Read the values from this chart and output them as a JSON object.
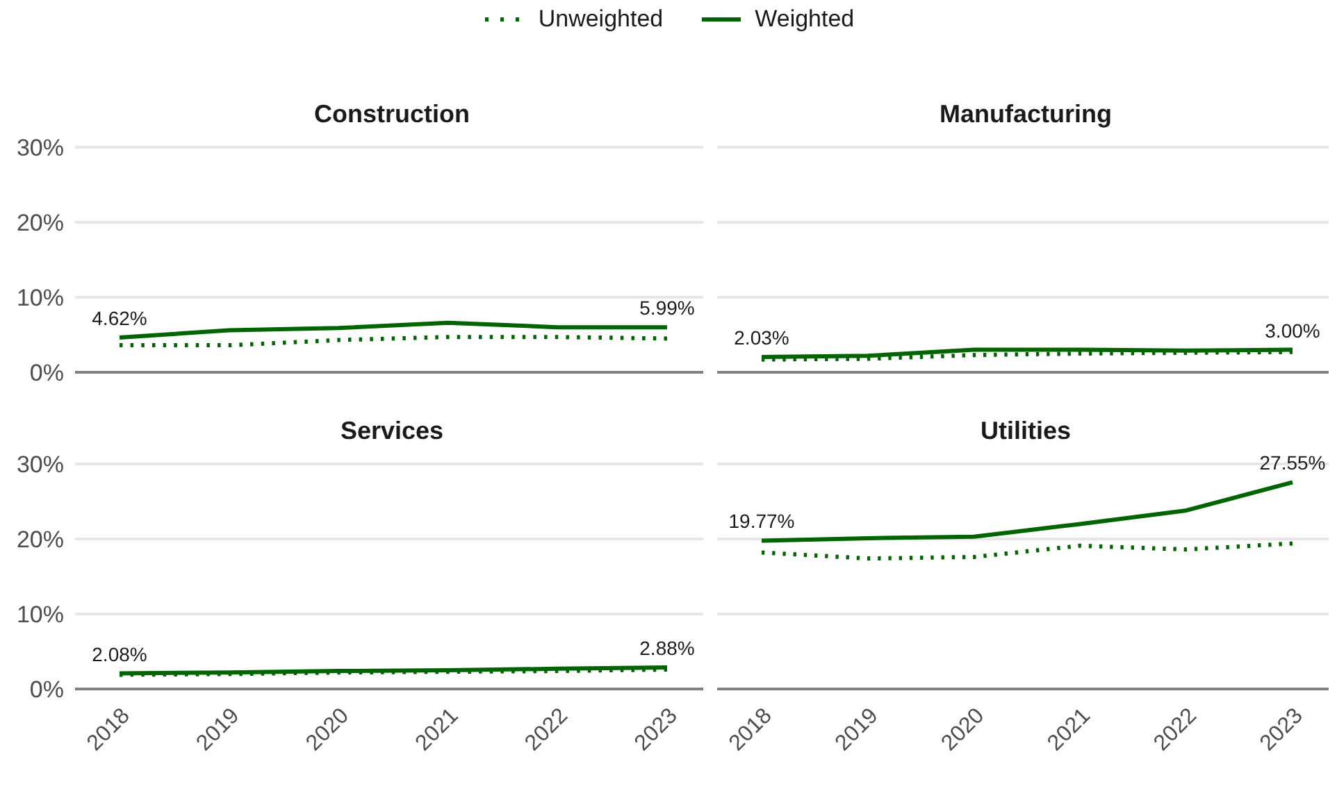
{
  "chart_data": [
    {
      "type": "line",
      "title": "Construction",
      "categories": [
        "2018",
        "2019",
        "2020",
        "2021",
        "2022",
        "2023"
      ],
      "ylim": [
        0,
        30
      ],
      "yticks": [
        {
          "value": 0,
          "label": "0%"
        },
        {
          "value": 10,
          "label": "10%"
        },
        {
          "value": 20,
          "label": "20%"
        },
        {
          "value": 30,
          "label": "30%"
        }
      ],
      "grid": "y",
      "tick_labels": "y",
      "legend": "top",
      "series": [
        {
          "name": "Unweighted",
          "color": "#006400",
          "line_style": "dotted",
          "values": [
            3.6,
            3.6,
            4.3,
            4.7,
            4.7,
            4.5
          ]
        },
        {
          "name": "Weighted",
          "color": "#006400",
          "line_style": "solid",
          "values": [
            4.62,
            5.6,
            5.9,
            6.6,
            6.0,
            5.99
          ],
          "value_labels": [
            "4.62%",
            null,
            null,
            null,
            null,
            "5.99%"
          ]
        }
      ]
    },
    {
      "type": "line",
      "title": "Manufacturing",
      "categories": [
        "2018",
        "2019",
        "2020",
        "2021",
        "2022",
        "2023"
      ],
      "ylim": [
        0,
        30
      ],
      "yticks": [
        {
          "value": 0,
          "label": null
        },
        {
          "value": 10,
          "label": null
        },
        {
          "value": 20,
          "label": null
        },
        {
          "value": 30,
          "label": null
        }
      ],
      "grid": "y",
      "tick_labels": false,
      "series": [
        {
          "color": "#006400",
          "line_style": "dotted",
          "values": [
            1.7,
            1.8,
            2.3,
            2.5,
            2.6,
            2.7
          ]
        },
        {
          "color": "#006400",
          "line_style": "solid",
          "values": [
            2.03,
            2.2,
            3.0,
            3.0,
            2.9,
            3.0
          ],
          "value_labels": [
            "2.03%",
            null,
            null,
            null,
            null,
            "3.00%"
          ]
        }
      ]
    },
    {
      "type": "line",
      "title": "Services",
      "categories": [
        "2018",
        "2019",
        "2020",
        "2021",
        "2022",
        "2023"
      ],
      "ylim": [
        0,
        30
      ],
      "yticks": [
        {
          "value": 0,
          "label": "0%"
        },
        {
          "value": 10,
          "label": "10%"
        },
        {
          "value": 20,
          "label": "20%"
        },
        {
          "value": 30,
          "label": "30%"
        }
      ],
      "grid": "y",
      "series": [
        {
          "color": "#006400",
          "line_style": "dotted",
          "values": [
            1.9,
            2.0,
            2.2,
            2.3,
            2.4,
            2.6
          ]
        },
        {
          "color": "#006400",
          "line_style": "solid",
          "values": [
            2.08,
            2.2,
            2.4,
            2.5,
            2.7,
            2.88
          ],
          "value_labels": [
            "2.08%",
            null,
            null,
            null,
            null,
            "2.88%"
          ]
        }
      ]
    },
    {
      "type": "line",
      "title": "Utilities",
      "categories": [
        "2018",
        "2019",
        "2020",
        "2021",
        "2022",
        "2023"
      ],
      "ylim": [
        0,
        30
      ],
      "yticks": [
        {
          "value": 0,
          "label": null
        },
        {
          "value": 10,
          "label": null
        },
        {
          "value": 20,
          "label": null
        },
        {
          "value": 30,
          "label": null
        }
      ],
      "grid": "y",
      "tick_labels": "x",
      "series": [
        {
          "color": "#006400",
          "line_style": "dotted",
          "values": [
            18.2,
            17.4,
            17.6,
            19.1,
            18.6,
            19.4
          ]
        },
        {
          "color": "#006400",
          "line_style": "solid",
          "values": [
            19.77,
            20.1,
            20.3,
            22.0,
            23.8,
            27.55
          ],
          "value_labels": [
            "19.77%",
            null,
            null,
            null,
            null,
            "27.55%"
          ]
        }
      ]
    }
  ]
}
